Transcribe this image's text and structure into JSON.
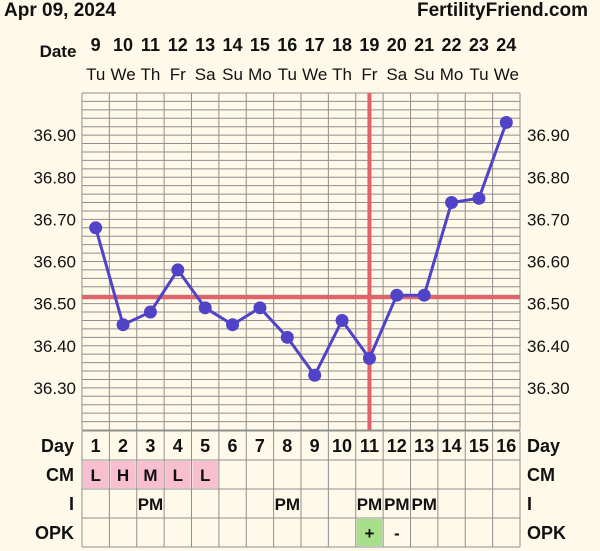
{
  "header": {
    "date": "Apr 09, 2024",
    "site": "FertilityFriend.com"
  },
  "colors": {
    "background": "#fff9ea",
    "grid": "#8f8f8f",
    "line": "#5043c8",
    "coverline": "#df6369",
    "ovulation_line": "#df6369",
    "cm_cell": "#f7bfd0",
    "opk_positive": "#a8e08a"
  },
  "chart_data": {
    "type": "line",
    "date_row_label": "Date",
    "day_row_label": "Day",
    "dates": [
      "9",
      "10",
      "11",
      "12",
      "13",
      "14",
      "15",
      "16",
      "17",
      "18",
      "19",
      "20",
      "21",
      "22",
      "23",
      "24"
    ],
    "weekdays": [
      "Tu",
      "We",
      "Th",
      "Fr",
      "Sa",
      "Su",
      "Mo",
      "Tu",
      "We",
      "Th",
      "Fr",
      "Sa",
      "Su",
      "Mo",
      "Tu",
      "We"
    ],
    "cycle_days": [
      "1",
      "2",
      "3",
      "4",
      "5",
      "6",
      "7",
      "8",
      "9",
      "10",
      "11",
      "12",
      "13",
      "14",
      "15",
      "16"
    ],
    "series": [
      {
        "values": [
          36.68,
          36.45,
          36.48,
          36.58,
          36.49,
          36.45,
          36.49,
          36.42,
          36.33,
          36.46,
          36.37,
          36.52,
          36.52,
          36.74,
          36.75,
          36.93
        ]
      }
    ],
    "y_ticks": [
      "36.30",
      "36.40",
      "36.50",
      "36.60",
      "36.70",
      "36.80",
      "36.90"
    ],
    "ylim": [
      36.2,
      37.0
    ],
    "coverline": 36.515,
    "ovulation_day": 11,
    "grid": true,
    "rows": [
      {
        "label": "CM",
        "cells": [
          "L",
          "H",
          "M",
          "L",
          "L",
          "",
          "",
          "",
          "",
          "",
          "",
          "",
          "",
          "",
          "",
          ""
        ],
        "highlight": [
          true,
          true,
          true,
          true,
          true,
          false,
          false,
          false,
          false,
          false,
          false,
          false,
          false,
          false,
          false,
          false
        ]
      },
      {
        "label": "I",
        "cells": [
          "",
          "",
          "PM",
          "",
          "",
          "",
          "",
          "PM",
          "",
          "",
          "PM",
          "PM",
          "PM",
          "",
          "",
          ""
        ]
      },
      {
        "label": "OPK",
        "cells": [
          "",
          "",
          "",
          "",
          "",
          "",
          "",
          "",
          "",
          "",
          "+",
          "-",
          "",
          "",
          "",
          ""
        ]
      }
    ]
  }
}
